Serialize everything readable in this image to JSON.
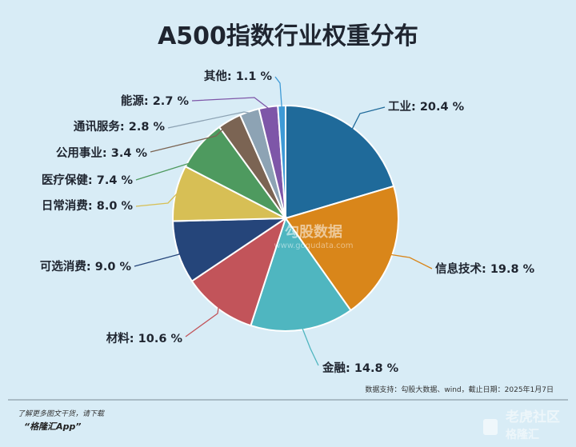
{
  "chart_data": {
    "type": "pie",
    "title": "A500指数行业权重分布",
    "unit": "%",
    "slices": [
      {
        "label": "工业",
        "value": 20.4,
        "value_text": "20.4 %",
        "color": "#1f6a9a"
      },
      {
        "label": "信息技术",
        "value": 19.8,
        "value_text": "19.8 %",
        "color": "#d9861a"
      },
      {
        "label": "金融",
        "value": 14.8,
        "value_text": "14.8 %",
        "color": "#4fb6c0"
      },
      {
        "label": "材料",
        "value": 10.6,
        "value_text": "10.6 %",
        "color": "#c2545a"
      },
      {
        "label": "可选消费",
        "value": 9.0,
        "value_text": "9.0 %",
        "color": "#25457a"
      },
      {
        "label": "日常消费",
        "value": 8.0,
        "value_text": "8.0 %",
        "color": "#d7bf55"
      },
      {
        "label": "医疗保健",
        "value": 7.4,
        "value_text": "7.4 %",
        "color": "#4e9a5f"
      },
      {
        "label": "公用事业",
        "value": 3.4,
        "value_text": "3.4 %",
        "color": "#7b6453"
      },
      {
        "label": "通讯服务",
        "value": 2.8,
        "value_text": "2.8 %",
        "color": "#8da3b4"
      },
      {
        "label": "能源",
        "value": 2.7,
        "value_text": "2.7 %",
        "color": "#7e56a8"
      },
      {
        "label": "其他",
        "value": 1.1,
        "value_text": "1.1 %",
        "color": "#3e9ad6"
      }
    ],
    "source": "数据支持：勾股大数据、wind，截止日期：2025年1月7日"
  },
  "footer": {
    "note": "了解更多图文干货，请下载",
    "app": "“格隆汇App”"
  },
  "watermarks": {
    "center": "勾股数据",
    "center_sub": "www.gogudata.com",
    "corner": "老虎社区",
    "corner_logo": "格隆汇"
  }
}
